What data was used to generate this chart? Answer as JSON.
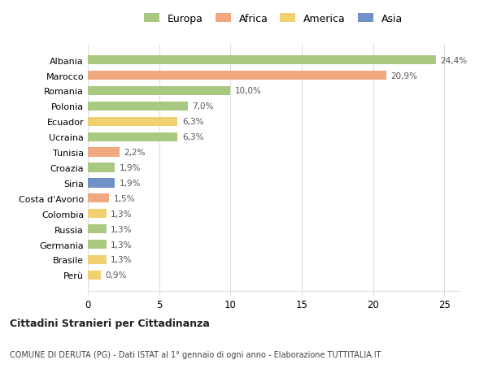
{
  "countries": [
    "Albania",
    "Marocco",
    "Romania",
    "Polonia",
    "Ecuador",
    "Ucraina",
    "Tunisia",
    "Croazia",
    "Siria",
    "Costa d'Avorio",
    "Colombia",
    "Russia",
    "Germania",
    "Brasile",
    "Perù"
  ],
  "values": [
    24.4,
    20.9,
    10.0,
    7.0,
    6.3,
    6.3,
    2.2,
    1.9,
    1.9,
    1.5,
    1.3,
    1.3,
    1.3,
    1.3,
    0.9
  ],
  "labels": [
    "24,4%",
    "20,9%",
    "10,0%",
    "7,0%",
    "6,3%",
    "6,3%",
    "2,2%",
    "1,9%",
    "1,9%",
    "1,5%",
    "1,3%",
    "1,3%",
    "1,3%",
    "1,3%",
    "0,9%"
  ],
  "continents": [
    "Europa",
    "Africa",
    "Europa",
    "Europa",
    "America",
    "Europa",
    "Africa",
    "Europa",
    "Asia",
    "Africa",
    "America",
    "Europa",
    "Europa",
    "America",
    "America"
  ],
  "colors": {
    "Europa": "#a8c97f",
    "Africa": "#f0a880",
    "America": "#f0d070",
    "Asia": "#7090c8"
  },
  "legend_labels": [
    "Europa",
    "Africa",
    "America",
    "Asia"
  ],
  "legend_colors": [
    "#a8c97f",
    "#f0a880",
    "#f0d070",
    "#7090c8"
  ],
  "title1": "Cittadini Stranieri per Cittadinanza",
  "title2": "COMUNE DI DERUTA (PG) - Dati ISTAT al 1° gennaio di ogni anno - Elaborazione TUTTITALIA.IT",
  "xlim": [
    0,
    26
  ],
  "background_color": "#ffffff",
  "grid_color": "#dddddd"
}
